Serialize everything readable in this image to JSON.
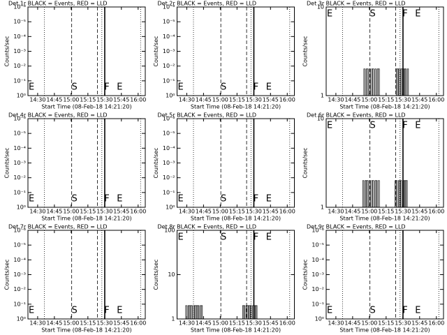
{
  "chart_data": [
    {
      "type": "bar",
      "title": "Det 1r BLACK = Events, RED = LLD",
      "ylabel": "Counts/sec",
      "xlabel": "Start Time (08-Feb-18 14:21:20)",
      "log_scale": true,
      "ylim": [
        1,
        1e-06
      ],
      "yticks": [
        {
          "value": 1,
          "label": "10⁰"
        },
        {
          "value": 0.1,
          "label": "10⁻¹"
        },
        {
          "value": 0.01,
          "label": "10⁻²"
        },
        {
          "value": 0.001,
          "label": "10⁻³"
        },
        {
          "value": 0.0001,
          "label": "10⁻⁴"
        },
        {
          "value": 1e-05,
          "label": "10⁻⁵"
        },
        {
          "value": 1e-06,
          "label": "10⁻⁶"
        }
      ],
      "label_position": "bottom"
    },
    {
      "type": "bar",
      "title": "Det 2r BLACK = Events, RED = LLD",
      "ylabel": "Counts/sec",
      "xlabel": "Start Time (08-Feb-18 14:21:20)",
      "log_scale": true,
      "ylim": [
        1,
        1e-06
      ],
      "yticks": [
        {
          "value": 1,
          "label": "10⁰"
        },
        {
          "value": 0.1,
          "label": "10⁻¹"
        },
        {
          "value": 0.01,
          "label": "10⁻²"
        },
        {
          "value": 0.001,
          "label": "10⁻³"
        },
        {
          "value": 0.0001,
          "label": "10⁻⁴"
        },
        {
          "value": 1e-05,
          "label": "10⁻⁵"
        },
        {
          "value": 1e-06,
          "label": "10⁻⁶"
        }
      ],
      "label_position": "bottom"
    },
    {
      "type": "bar",
      "title": "Det 3r BLACK = Events, RED = LLD",
      "ylabel": "Counts/sec",
      "xlabel": "Start Time (08-Feb-18 14:21:20)",
      "log_scale": true,
      "ylim": [
        1,
        10
      ],
      "yticks": [
        1,
        10
      ],
      "label_position": "top",
      "color": "#000000",
      "x": [
        895,
        896,
        897,
        898,
        899,
        900,
        901,
        902,
        903,
        904,
        905,
        906,
        907,
        908,
        924,
        925,
        926,
        927,
        928,
        929,
        930,
        931,
        932,
        933,
        934
      ],
      "values": [
        2,
        1,
        2,
        2,
        1,
        2,
        1,
        2,
        2,
        1,
        2,
        1,
        2,
        2,
        2,
        2,
        2,
        1,
        2,
        2,
        2,
        2,
        2,
        1,
        2
      ]
    },
    {
      "type": "bar",
      "title": "Det 4r BLACK = Events, RED = LLD",
      "ylabel": "Counts/sec",
      "xlabel": "Start Time (08-Feb-18 14:21:20)",
      "log_scale": true,
      "ylim": [
        1,
        1e-06
      ],
      "yticks": [
        {
          "value": 1,
          "label": "10⁰"
        },
        {
          "value": 0.1,
          "label": "10⁻¹"
        },
        {
          "value": 0.01,
          "label": "10⁻²"
        },
        {
          "value": 0.001,
          "label": "10⁻³"
        },
        {
          "value": 0.0001,
          "label": "10⁻⁴"
        },
        {
          "value": 1e-05,
          "label": "10⁻⁵"
        },
        {
          "value": 1e-06,
          "label": "10⁻⁶"
        }
      ],
      "label_position": "bottom"
    },
    {
      "type": "bar",
      "title": "Det 5r BLACK = Events, RED = LLD",
      "ylabel": "Counts/sec",
      "xlabel": "Start Time (08-Feb-18 14:21:20)",
      "log_scale": true,
      "ylim": [
        1,
        1e-06
      ],
      "yticks": [
        {
          "value": 1,
          "label": "10⁰"
        },
        {
          "value": 0.1,
          "label": "10⁻¹"
        },
        {
          "value": 0.01,
          "label": "10⁻²"
        },
        {
          "value": 0.001,
          "label": "10⁻³"
        },
        {
          "value": 0.0001,
          "label": "10⁻⁴"
        },
        {
          "value": 1e-05,
          "label": "10⁻⁵"
        },
        {
          "value": 1e-06,
          "label": "10⁻⁶"
        }
      ],
      "label_position": "bottom"
    },
    {
      "type": "bar",
      "title": "Det 6r BLACK = Events, RED = LLD",
      "ylabel": "Counts/sec",
      "xlabel": "Start Time (08-Feb-18 14:21:20)",
      "log_scale": true,
      "ylim": [
        1,
        10
      ],
      "yticks": [
        1,
        10
      ],
      "label_position": "top",
      "color": "#000000",
      "x": [
        894,
        895,
        896,
        897,
        898,
        899,
        900,
        901,
        902,
        903,
        904,
        905,
        906,
        907,
        908,
        923,
        924,
        925,
        926,
        927,
        928,
        929,
        930,
        931,
        932,
        933
      ],
      "values": [
        2,
        1,
        2,
        2,
        2,
        1,
        2,
        1,
        2,
        2,
        1,
        2,
        2,
        1,
        2,
        2,
        2,
        1,
        2,
        2,
        2,
        1,
        2,
        2,
        2,
        2
      ]
    },
    {
      "type": "bar",
      "title": "Det 7r BLACK = Events, RED = LLD",
      "ylabel": "Counts/sec",
      "xlabel": "Start Time (08-Feb-18 14:21:20)",
      "log_scale": true,
      "ylim": [
        1,
        1e-06
      ],
      "yticks": [
        {
          "value": 1,
          "label": "10⁰"
        },
        {
          "value": 0.1,
          "label": "10⁻¹"
        },
        {
          "value": 0.01,
          "label": "10⁻²"
        },
        {
          "value": 0.001,
          "label": "10⁻³"
        },
        {
          "value": 0.0001,
          "label": "10⁻⁴"
        },
        {
          "value": 1e-05,
          "label": "10⁻⁵"
        },
        {
          "value": 1e-06,
          "label": "10⁻⁶"
        }
      ],
      "label_position": "bottom"
    },
    {
      "type": "bar",
      "title": "Det 8r BLACK = Events, RED = LLD",
      "ylabel": "Counts/sec",
      "xlabel": "Start Time (08-Feb-18 14:21:20)",
      "log_scale": true,
      "ylim": [
        1,
        100
      ],
      "yticks": [
        1,
        10,
        100
      ],
      "label_position": "top",
      "color": "#000000",
      "x": [
        869,
        870,
        871,
        872,
        873,
        874,
        875,
        876,
        877,
        878,
        879,
        880,
        881,
        882,
        883,
        920,
        921,
        922,
        923,
        924,
        925,
        926,
        927,
        928,
        929,
        930,
        931,
        932
      ],
      "values": [
        2,
        1,
        2,
        2,
        2,
        2,
        1,
        2,
        2,
        2,
        2,
        2,
        1,
        2,
        2,
        2,
        2,
        1,
        2,
        2,
        2,
        2,
        2,
        1,
        2,
        2,
        2,
        2
      ]
    },
    {
      "type": "bar",
      "title": "Det 9r BLACK = Events, RED = LLD",
      "ylabel": "Counts/sec",
      "xlabel": "Start Time (08-Feb-18 14:21:20)",
      "log_scale": true,
      "ylim": [
        1,
        1e-06
      ],
      "yticks": [
        {
          "value": 1,
          "label": "10⁰"
        },
        {
          "value": 0.1,
          "label": "10⁻¹"
        },
        {
          "value": 0.01,
          "label": "10⁻²"
        },
        {
          "value": 0.001,
          "label": "10⁻³"
        },
        {
          "value": 0.0001,
          "label": "10⁻⁴"
        },
        {
          "value": 1e-05,
          "label": "10⁻⁵"
        },
        {
          "value": 1e-06,
          "label": "10⁻⁶"
        }
      ],
      "label_position": "bottom"
    }
  ],
  "xlim": [
    861.3,
    966.4
  ],
  "xticks": [
    {
      "value": 870,
      "label": "14:30"
    },
    {
      "value": 885,
      "label": "14:45"
    },
    {
      "value": 900,
      "label": "15:00"
    },
    {
      "value": 915,
      "label": "15:15"
    },
    {
      "value": 930,
      "label": "15:30"
    },
    {
      "value": 945,
      "label": "15:45"
    },
    {
      "value": 960,
      "label": "16:00"
    }
  ],
  "time_markers": [
    {
      "x": 876,
      "style": "dotted"
    },
    {
      "x": 900.5,
      "style": "dashed"
    },
    {
      "x": 923.6,
      "style": "dashed"
    },
    {
      "x": 927.5,
      "style": "dotted"
    },
    {
      "x": 930.1,
      "style": "solid"
    },
    {
      "x": 962.2,
      "style": "dotted"
    }
  ],
  "annotations": [
    {
      "text": "E",
      "x": 864.5
    },
    {
      "text": "S",
      "x": 903
    },
    {
      "text": "F",
      "x": 932
    },
    {
      "text": "E",
      "x": 943.5
    }
  ]
}
